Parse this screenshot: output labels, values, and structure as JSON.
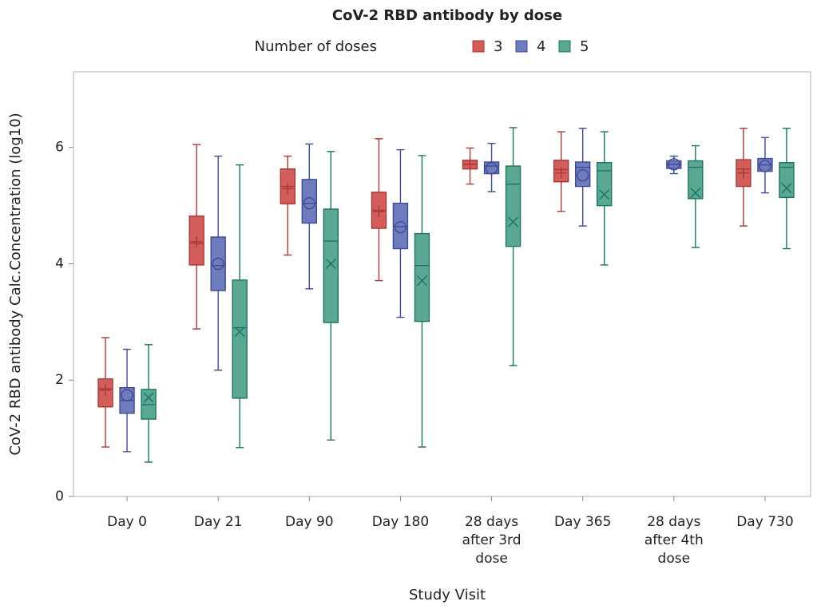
{
  "chart_data": {
    "type": "box",
    "title": "CoV-2 RBD antibody by dose",
    "legend_title": "Number of doses",
    "x_label": "Study Visit",
    "y_label": "CoV-2 RBD antibody Calc.Concentration (log10)",
    "categories": [
      "Day 0",
      "Day 21",
      "Day 90",
      "Day 180",
      "28 days after 3rd dose",
      "Day 365",
      "28 days after 4th dose",
      "Day 730"
    ],
    "ylim": [
      0,
      7.3
    ],
    "yticks": [
      0,
      2,
      4,
      6
    ],
    "series": [
      {
        "name": "3",
        "color": "#d35d5b",
        "line_color": "#a53a38",
        "marker": "plus",
        "whisker_low": [
          0.85,
          2.88,
          4.15,
          3.71,
          5.37,
          4.9,
          null,
          4.65
        ],
        "q1": [
          1.54,
          3.98,
          5.03,
          4.61,
          5.63,
          5.41,
          null,
          5.33
        ],
        "median": [
          1.85,
          4.35,
          5.33,
          4.92,
          5.71,
          5.62,
          null,
          5.63
        ],
        "q3": [
          2.02,
          4.82,
          5.63,
          5.23,
          5.78,
          5.78,
          null,
          5.79
        ],
        "whisker_high": [
          2.73,
          6.05,
          5.85,
          6.15,
          5.99,
          6.27,
          null,
          6.33
        ],
        "mean": [
          1.83,
          4.38,
          5.29,
          4.9,
          5.71,
          5.56,
          null,
          5.56
        ]
      },
      {
        "name": "4",
        "color": "#6e7cbe",
        "line_color": "#3f4a96",
        "marker": "circle",
        "whisker_low": [
          0.77,
          2.17,
          3.57,
          3.08,
          5.24,
          4.65,
          5.55,
          5.22
        ],
        "q1": [
          1.43,
          3.54,
          4.7,
          4.26,
          5.55,
          5.33,
          5.64,
          5.59
        ],
        "median": [
          1.65,
          3.97,
          5.04,
          4.64,
          5.68,
          5.66,
          5.71,
          5.7
        ],
        "q3": [
          1.87,
          4.46,
          5.45,
          5.04,
          5.75,
          5.75,
          5.77,
          5.81
        ],
        "whisker_high": [
          2.53,
          5.85,
          6.06,
          5.96,
          6.07,
          6.33,
          5.85,
          6.17
        ],
        "mean": [
          1.74,
          4.0,
          5.04,
          4.63,
          5.64,
          5.52,
          5.71,
          5.68
        ]
      },
      {
        "name": "5",
        "color": "#5aa893",
        "line_color": "#1b7461",
        "marker": "x",
        "whisker_low": [
          0.59,
          0.84,
          0.97,
          0.85,
          2.25,
          3.98,
          4.28,
          4.26
        ],
        "q1": [
          1.33,
          1.69,
          2.99,
          3.01,
          4.3,
          5.0,
          5.12,
          5.14
        ],
        "median": [
          1.58,
          2.9,
          4.39,
          3.97,
          5.37,
          5.6,
          5.66,
          5.66
        ],
        "q3": [
          1.84,
          3.72,
          4.94,
          4.52,
          5.68,
          5.74,
          5.77,
          5.74
        ],
        "whisker_high": [
          2.61,
          5.7,
          5.93,
          5.86,
          6.34,
          6.27,
          6.03,
          6.33
        ],
        "mean": [
          1.7,
          2.83,
          4.0,
          3.71,
          4.72,
          5.19,
          5.22,
          5.3
        ]
      }
    ]
  }
}
